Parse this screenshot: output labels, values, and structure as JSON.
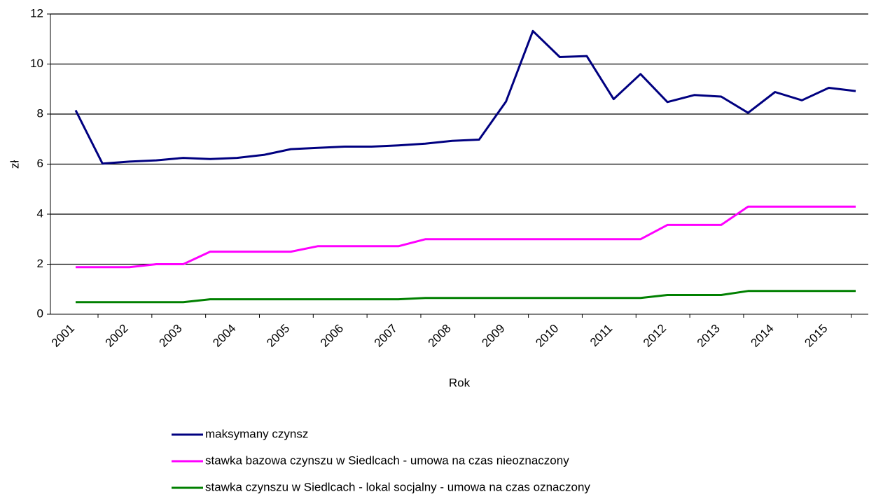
{
  "chart_data": {
    "type": "line",
    "x_label": "Rok",
    "y_label": "zł",
    "categories": [
      "2001",
      null,
      "2002",
      null,
      "2003",
      null,
      "2004",
      null,
      "2005",
      null,
      "2006",
      null,
      "2007",
      null,
      "2008",
      null,
      "2009",
      null,
      "2010",
      null,
      "2011",
      null,
      "2012",
      null,
      "2013",
      null,
      "2014",
      null,
      "2015",
      null
    ],
    "series": [
      {
        "name": "maksymany czynsz",
        "color": "#000080",
        "values": [
          8.15,
          6.02,
          6.1,
          6.15,
          6.25,
          6.2,
          6.25,
          6.37,
          6.6,
          6.65,
          6.7,
          6.7,
          6.75,
          6.82,
          6.93,
          6.98,
          8.5,
          11.32,
          10.28,
          10.32,
          8.6,
          9.6,
          8.48,
          8.76,
          8.7,
          8.05,
          8.88,
          8.55,
          9.05,
          8.92
        ]
      },
      {
        "name": "stawka bazowa czynszu w Siedlcach - umowa na czas nieoznaczony",
        "color": "#ff00ff",
        "values": [
          1.88,
          1.88,
          1.88,
          2.0,
          2.0,
          2.5,
          2.5,
          2.5,
          2.5,
          2.72,
          2.72,
          2.72,
          2.72,
          3.0,
          3.0,
          3.0,
          3.0,
          3.0,
          3.0,
          3.0,
          3.0,
          3.0,
          3.57,
          3.57,
          3.57,
          4.3,
          4.3,
          4.3,
          4.3,
          4.3
        ]
      },
      {
        "name": "stawka czynszu w Siedlcach - lokal socjalny - umowa na czas oznaczony",
        "color": "#008000",
        "values": [
          0.48,
          0.48,
          0.48,
          0.48,
          0.48,
          0.6,
          0.6,
          0.6,
          0.6,
          0.6,
          0.6,
          0.6,
          0.6,
          0.65,
          0.65,
          0.65,
          0.65,
          0.65,
          0.65,
          0.65,
          0.65,
          0.65,
          0.77,
          0.77,
          0.77,
          0.93,
          0.93,
          0.93,
          0.93,
          0.93
        ]
      }
    ],
    "ylim": [
      0,
      12
    ],
    "yticks": [
      0,
      2,
      4,
      6,
      8,
      10,
      12
    ],
    "grid": true,
    "legend": "bottom"
  }
}
